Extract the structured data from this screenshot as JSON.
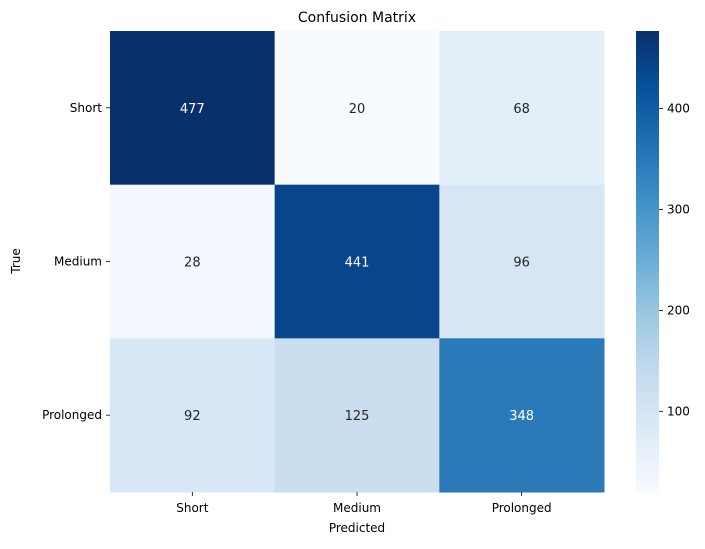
{
  "chart_data": {
    "type": "heatmap",
    "title": "Confusion Matrix",
    "xlabel": "Predicted",
    "ylabel": "True",
    "x_categories": [
      "Short",
      "Medium",
      "Prolonged"
    ],
    "y_categories": [
      "Short",
      "Medium",
      "Prolonged"
    ],
    "values": [
      [
        477,
        20,
        68
      ],
      [
        28,
        441,
        96
      ],
      [
        92,
        125,
        348
      ]
    ],
    "colormap": "Blues",
    "color_range": [
      20,
      477
    ],
    "colorbar_ticks": [
      100,
      200,
      300,
      400
    ],
    "annotations": true,
    "grid": false
  }
}
